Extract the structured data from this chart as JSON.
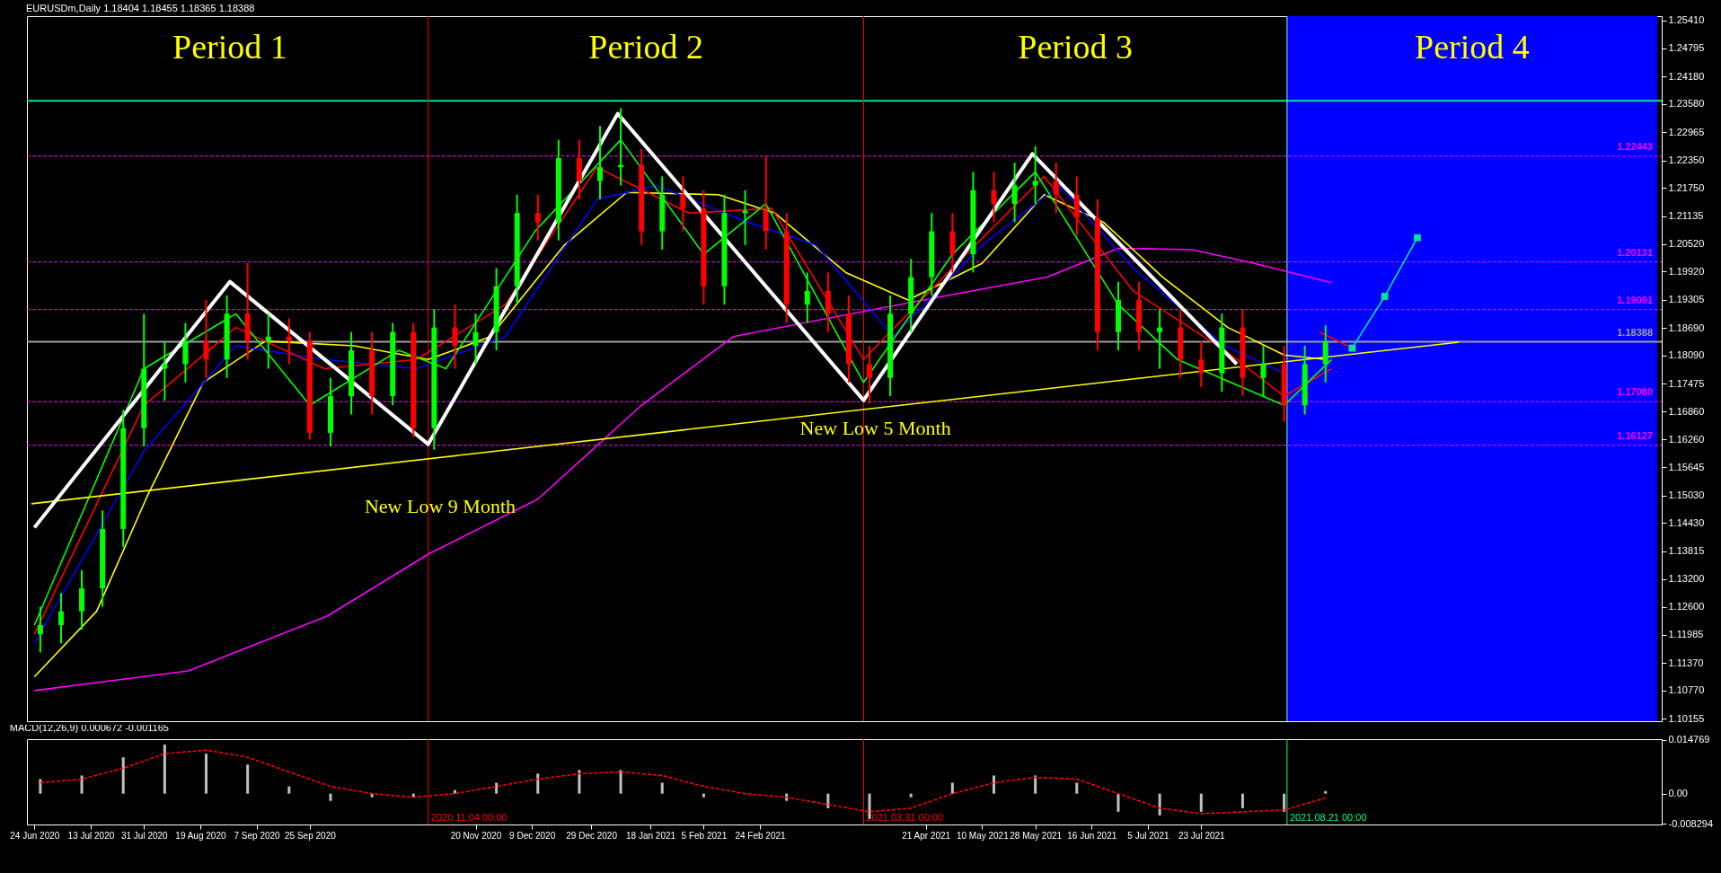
{
  "chart_data": [
    {
      "type": "candlestick",
      "title": "EURUSDm,Daily  1.18404 1.18455 1.18365 1.18388",
      "tick_labels": "y",
      "xlim": [
        "2020-06-23",
        "2021-12-24"
      ],
      "ylim": [
        1.101,
        1.255
      ],
      "yticks": [
        {
          "value": 1.2541,
          "label": "1.25410"
        },
        {
          "value": 1.24795,
          "label": "1.24795"
        },
        {
          "value": 1.2418,
          "label": "1.24180"
        },
        {
          "value": 1.2358,
          "label": "1.23580"
        },
        {
          "value": 1.22965,
          "label": "1.22965"
        },
        {
          "value": 1.2235,
          "label": "1.22350"
        },
        {
          "value": 1.2175,
          "label": "1.21750"
        },
        {
          "value": 1.21135,
          "label": "1.21135"
        },
        {
          "value": 1.2052,
          "label": "1.20520"
        },
        {
          "value": 1.1992,
          "label": "1.19920"
        },
        {
          "value": 1.19305,
          "label": "1.19305"
        },
        {
          "value": 1.1869,
          "label": "1.18690"
        },
        {
          "value": 1.1809,
          "label": "1.18090"
        },
        {
          "value": 1.17475,
          "label": "1.17475"
        },
        {
          "value": 1.1686,
          "label": "1.16860"
        },
        {
          "value": 1.1626,
          "label": "1.16260"
        },
        {
          "value": 1.15645,
          "label": "1.15645"
        },
        {
          "value": 1.1503,
          "label": "1.15030"
        },
        {
          "value": 1.1443,
          "label": "1.14430"
        },
        {
          "value": 1.13815,
          "label": "1.13815"
        },
        {
          "value": 1.132,
          "label": "1.13200"
        },
        {
          "value": 1.126,
          "label": "1.12600"
        },
        {
          "value": 1.11985,
          "label": "1.11985"
        },
        {
          "value": 1.1137,
          "label": "1.11370"
        },
        {
          "value": 1.1077,
          "label": "1.10770"
        },
        {
          "value": 1.10155,
          "label": "1.10155"
        }
      ],
      "x": [
        "2020-06-26",
        "2020-07-03",
        "2020-07-10",
        "2020-07-17",
        "2020-07-24",
        "2020-07-31",
        "2020-08-07",
        "2020-08-14",
        "2020-08-21",
        "2020-08-28",
        "2020-09-04",
        "2020-09-11",
        "2020-09-18",
        "2020-09-25",
        "2020-10-02",
        "2020-10-09",
        "2020-10-16",
        "2020-10-23",
        "2020-10-30",
        "2020-11-06",
        "2020-11-13",
        "2020-11-20",
        "2020-11-27",
        "2020-12-04",
        "2020-12-11",
        "2020-12-18",
        "2020-12-25",
        "2021-01-01",
        "2021-01-08",
        "2021-01-15",
        "2021-01-22",
        "2021-01-29",
        "2021-02-05",
        "2021-02-12",
        "2021-02-19",
        "2021-02-26",
        "2021-03-05",
        "2021-03-12",
        "2021-03-19",
        "2021-03-26",
        "2021-04-02",
        "2021-04-09",
        "2021-04-16",
        "2021-04-23",
        "2021-04-30",
        "2021-05-07",
        "2021-05-14",
        "2021-05-21",
        "2021-05-28",
        "2021-06-04",
        "2021-06-11",
        "2021-06-18",
        "2021-06-25",
        "2021-07-02",
        "2021-07-09",
        "2021-07-16",
        "2021-07-23",
        "2021-07-30",
        "2021-08-06",
        "2021-08-13",
        "2021-08-20",
        "2021-08-27",
        "2021-09-03"
      ],
      "ohlc": [
        [
          1.12,
          1.126,
          1.116,
          1.122
        ],
        [
          1.122,
          1.129,
          1.118,
          1.125
        ],
        [
          1.125,
          1.134,
          1.121,
          1.13
        ],
        [
          1.13,
          1.147,
          1.126,
          1.143
        ],
        [
          1.143,
          1.169,
          1.139,
          1.165
        ],
        [
          1.165,
          1.19,
          1.161,
          1.178
        ],
        [
          1.178,
          1.184,
          1.171,
          1.179
        ],
        [
          1.179,
          1.188,
          1.175,
          1.184
        ],
        [
          1.184,
          1.193,
          1.176,
          1.18
        ],
        [
          1.18,
          1.194,
          1.176,
          1.19
        ],
        [
          1.19,
          1.2011,
          1.18,
          1.184
        ],
        [
          1.184,
          1.19,
          1.178,
          1.185
        ],
        [
          1.185,
          1.189,
          1.179,
          1.184
        ],
        [
          1.184,
          1.186,
          1.1625,
          1.164
        ],
        [
          1.164,
          1.176,
          1.161,
          1.172
        ],
        [
          1.172,
          1.186,
          1.168,
          1.182
        ],
        [
          1.182,
          1.186,
          1.168,
          1.172
        ],
        [
          1.172,
          1.188,
          1.17,
          1.186
        ],
        [
          1.186,
          1.188,
          1.163,
          1.165
        ],
        [
          1.165,
          1.191,
          1.1603,
          1.187
        ],
        [
          1.187,
          1.192,
          1.178,
          1.183
        ],
        [
          1.183,
          1.19,
          1.179,
          1.186
        ],
        [
          1.186,
          1.2,
          1.182,
          1.196
        ],
        [
          1.196,
          1.216,
          1.192,
          1.212
        ],
        [
          1.212,
          1.216,
          1.206,
          1.21
        ],
        [
          1.21,
          1.228,
          1.206,
          1.224
        ],
        [
          1.224,
          1.228,
          1.215,
          1.219
        ],
        [
          1.219,
          1.231,
          1.215,
          1.222
        ],
        [
          1.222,
          1.2349,
          1.218,
          1.2225
        ],
        [
          1.2225,
          1.226,
          1.205,
          1.208
        ],
        [
          1.208,
          1.22,
          1.204,
          1.216
        ],
        [
          1.216,
          1.22,
          1.208,
          1.213
        ],
        [
          1.213,
          1.217,
          1.192,
          1.196
        ],
        [
          1.196,
          1.216,
          1.192,
          1.212
        ],
        [
          1.212,
          1.217,
          1.205,
          1.2125
        ],
        [
          1.2125,
          1.2245,
          1.204,
          1.208
        ],
        [
          1.208,
          1.212,
          1.188,
          1.192
        ],
        [
          1.192,
          1.199,
          1.188,
          1.195
        ],
        [
          1.195,
          1.199,
          1.186,
          1.19
        ],
        [
          1.19,
          1.194,
          1.175,
          1.179
        ],
        [
          1.179,
          1.183,
          1.1704,
          1.176
        ],
        [
          1.176,
          1.194,
          1.172,
          1.19
        ],
        [
          1.19,
          1.202,
          1.186,
          1.198
        ],
        [
          1.198,
          1.212,
          1.194,
          1.208
        ],
        [
          1.208,
          1.212,
          1.199,
          1.203
        ],
        [
          1.203,
          1.221,
          1.199,
          1.217
        ],
        [
          1.217,
          1.221,
          1.21,
          1.214
        ],
        [
          1.214,
          1.223,
          1.21,
          1.218
        ],
        [
          1.218,
          1.2266,
          1.214,
          1.219
        ],
        [
          1.219,
          1.223,
          1.212,
          1.216
        ],
        [
          1.216,
          1.22,
          1.207,
          1.211
        ],
        [
          1.211,
          1.215,
          1.182,
          1.186
        ],
        [
          1.186,
          1.197,
          1.182,
          1.193
        ],
        [
          1.193,
          1.197,
          1.182,
          1.186
        ],
        [
          1.186,
          1.191,
          1.178,
          1.187
        ],
        [
          1.187,
          1.191,
          1.176,
          1.18
        ],
        [
          1.18,
          1.184,
          1.174,
          1.177
        ],
        [
          1.177,
          1.19,
          1.173,
          1.187
        ],
        [
          1.187,
          1.191,
          1.172,
          1.176
        ],
        [
          1.176,
          1.183,
          1.172,
          1.179
        ],
        [
          1.179,
          1.183,
          1.1664,
          1.17
        ],
        [
          1.17,
          1.183,
          1.168,
          1.179
        ],
        [
          1.179,
          1.1875,
          1.175,
          1.18388
        ]
      ],
      "colors": [
        "#00ff00",
        "#00ff00",
        "#00ff00",
        "#00ff00",
        "#00ff00",
        "#00ff00",
        "#00ff00",
        "#00ff00",
        "#ff0000",
        "#00ff00",
        "#ff0000",
        "#00ff00",
        "#ff0000",
        "#ff0000",
        "#00ff00",
        "#00ff00",
        "#ff0000",
        "#00ff00",
        "#ff0000",
        "#00ff00",
        "#ff0000",
        "#00ff00",
        "#00ff00",
        "#00ff00",
        "#ff0000",
        "#00ff00",
        "#ff0000",
        "#00ff00",
        "#00ff00",
        "#ff0000",
        "#00ff00",
        "#ff0000",
        "#ff0000",
        "#00ff00",
        "#00ff00",
        "#ff0000",
        "#ff0000",
        "#00ff00",
        "#ff0000",
        "#ff0000",
        "#ff0000",
        "#00ff00",
        "#00ff00",
        "#00ff00",
        "#ff0000",
        "#00ff00",
        "#ff0000",
        "#00ff00",
        "#00ff00",
        "#ff0000",
        "#ff0000",
        "#ff0000",
        "#00ff00",
        "#ff0000",
        "#00ff00",
        "#ff0000",
        "#ff0000",
        "#00ff00",
        "#ff0000",
        "#00ff00",
        "#ff0000",
        "#00ff00",
        "#00ff00"
      ],
      "series": [
        {
          "type": "line",
          "color": "#ff00ff",
          "x": [
            "2020-06-24",
            "2020-08-15",
            "2020-10-01",
            "2020-11-04",
            "2020-12-11",
            "2021-01-15",
            "2021-02-15",
            "2021-03-31",
            "2021-04-30",
            "2021-06-01",
            "2021-06-25",
            "2021-07-20",
            "2021-08-10",
            "2021-09-05"
          ],
          "values": [
            1.1077,
            1.112,
            1.124,
            1.1375,
            1.1495,
            1.17,
            1.185,
            1.1905,
            1.1942,
            1.198,
            1.2043,
            1.204,
            1.201,
            1.1968
          ]
        },
        {
          "type": "line",
          "color": "#ffff00",
          "x": [
            "2020-06-24",
            "2020-07-15",
            "2020-08-01",
            "2020-08-20",
            "2020-09-10",
            "2020-10-10",
            "2020-11-04",
            "2020-11-25",
            "2020-12-20",
            "2021-01-10",
            "2021-02-10",
            "2021-03-01",
            "2021-03-25",
            "2021-04-15",
            "2021-05-10",
            "2021-05-31",
            "2021-06-20",
            "2021-07-10",
            "2021-08-01",
            "2021-08-20",
            "2021-09-03"
          ],
          "values": [
            1.1107,
            1.125,
            1.15,
            1.175,
            1.184,
            1.183,
            1.18,
            1.185,
            1.205,
            1.2165,
            1.216,
            1.212,
            1.199,
            1.193,
            1.201,
            1.216,
            1.21,
            1.198,
            1.187,
            1.181,
            1.18
          ]
        },
        {
          "type": "line",
          "color": "#0000ff",
          "x": [
            "2020-06-24",
            "2020-07-31",
            "2020-08-31",
            "2020-09-30",
            "2020-10-31",
            "2020-11-30",
            "2020-12-31",
            "2021-01-20",
            "2021-02-20",
            "2021-03-15",
            "2021-04-10",
            "2021-05-10",
            "2021-06-05",
            "2021-06-30",
            "2021-07-31",
            "2021-08-20"
          ],
          "values": [
            1.118,
            1.16,
            1.183,
            1.18,
            1.178,
            1.185,
            1.215,
            1.218,
            1.21,
            1.205,
            1.185,
            1.205,
            1.218,
            1.2,
            1.183,
            1.177
          ]
        },
        {
          "type": "line",
          "color": "#ff0000",
          "x": [
            "2020-06-24",
            "2020-07-31",
            "2020-08-31",
            "2020-09-30",
            "2020-10-31",
            "2020-11-30",
            "2020-12-31",
            "2021-01-31",
            "2021-02-28",
            "2021-03-31",
            "2021-04-30",
            "2021-05-31",
            "2021-06-30",
            "2021-07-31",
            "2021-08-20",
            "2021-09-05"
          ],
          "values": [
            1.12,
            1.17,
            1.187,
            1.178,
            1.18,
            1.192,
            1.222,
            1.212,
            1.213,
            1.18,
            1.2,
            1.22,
            1.195,
            1.182,
            1.172,
            1.178
          ]
        },
        {
          "type": "line",
          "color": "#00ff00",
          "x": [
            "2020-06-24",
            "2020-07-31",
            "2020-08-31",
            "2020-09-25",
            "2020-10-25",
            "2020-11-10",
            "2020-12-10",
            "2021-01-08",
            "2021-02-05",
            "2021-02-26",
            "2021-03-31",
            "2021-04-30",
            "2021-05-28",
            "2021-06-25",
            "2021-07-15",
            "2021-08-20",
            "2021-09-05"
          ],
          "values": [
            1.122,
            1.178,
            1.19,
            1.17,
            1.182,
            1.178,
            1.208,
            1.228,
            1.203,
            1.214,
            1.175,
            1.203,
            1.221,
            1.192,
            1.18,
            1.17,
            1.18
          ]
        },
        {
          "type": "line",
          "color": "#ffff00",
          "x": [
            "2020-06-23",
            "2021-10-18"
          ],
          "values": [
            1.1485,
            1.1838
          ]
        },
        {
          "type": "line",
          "color": "#ffffff",
          "x": [
            "2020-06-24",
            "2020-08-29",
            "2020-11-04",
            "2021-01-07",
            "2021-03-31",
            "2021-05-27",
            "2021-08-04"
          ],
          "values": [
            1.1433,
            1.197,
            1.1615,
            1.2337,
            1.1711,
            1.2249,
            1.179
          ]
        },
        {
          "type": "line",
          "color": "#ff0000",
          "x": [
            "2021-09-01",
            "2021-09-12"
          ],
          "values": [
            1.186,
            1.1825
          ]
        },
        {
          "type": "line",
          "color": "#00e68c",
          "marker": "square",
          "x": [
            "2021-09-12",
            "2021-09-23",
            "2021-10-04"
          ],
          "values": [
            1.1825,
            1.1938,
            1.2066
          ]
        }
      ],
      "bands": [
        {
          "axis": "x",
          "from": "2021-08-21",
          "to": "2021-12-24",
          "color": "#0000ff"
        }
      ],
      "ref_lines": [
        {
          "axis": "y",
          "value": 1.2365,
          "color": "#00e68c",
          "line_style": "solid"
        },
        {
          "axis": "y",
          "value": 1.22443,
          "label": "1.22443",
          "color": "#ff00ff",
          "line_style": "dashed"
        },
        {
          "axis": "y",
          "value": 1.20131,
          "label": "1.20131",
          "color": "#ff00ff",
          "line_style": "dashed"
        },
        {
          "axis": "y",
          "value": 1.19091,
          "label": "1.19091",
          "color": "#ff00ff",
          "line_style": "dashed"
        },
        {
          "axis": "y",
          "value": 1.18388,
          "label": "1.18388",
          "color": "#a0a0a0",
          "line_style": "solid"
        },
        {
          "axis": "y",
          "value": 1.1708,
          "label": "1.17080",
          "color": "#ff00ff",
          "line_style": "dashed"
        },
        {
          "axis": "y",
          "value": 1.16127,
          "label": "1.16127",
          "color": "#ff00ff",
          "line_style": "dashed"
        },
        {
          "axis": "x",
          "value": "2020-11-04",
          "color": "#ff0000",
          "line_style": "solid"
        },
        {
          "axis": "x",
          "value": "2021-03-31",
          "color": "#ff0000",
          "line_style": "solid"
        },
        {
          "axis": "x",
          "value": "2021-08-21",
          "color": "#7fffd4",
          "line_style": "solid"
        }
      ],
      "annotations": [
        "Period 1",
        "Period 2",
        "Period 3",
        "Period 4",
        "New Low 9 Month",
        "New Low 5 Month"
      ]
    },
    {
      "type": "bar",
      "title": "MACD(12,26,9) 0.000672 -0.001165",
      "xlim": [
        "2020-06-23",
        "2021-12-24"
      ],
      "ylim": [
        -0.0085,
        0.015
      ],
      "yticks": [
        {
          "value": 0.014769,
          "label": "0.014769"
        },
        {
          "value": 0,
          "label": "0.00"
        },
        {
          "value": -0.008294,
          "label": "-0.008294"
        }
      ],
      "xticks": [
        {
          "value": "2020-06-24",
          "label": "24 Jun 2020"
        },
        {
          "value": "2020-07-13",
          "label": "13 Jul 2020"
        },
        {
          "value": "2020-07-31",
          "label": "31 Jul 2020"
        },
        {
          "value": "2020-08-19",
          "label": "19 Aug 2020"
        },
        {
          "value": "2020-09-07",
          "label": "7 Sep 2020"
        },
        {
          "value": "2020-09-25",
          "label": "25 Sep 2020"
        },
        {
          "value": "2020-11-20",
          "label": "20 Nov 2020"
        },
        {
          "value": "2020-12-09",
          "label": "9 Dec 2020"
        },
        {
          "value": "2020-12-29",
          "label": "29 Dec 2020"
        },
        {
          "value": "2021-01-18",
          "label": "18 Jan 2021"
        },
        {
          "value": "2021-02-05",
          "label": "5 Feb 2021"
        },
        {
          "value": "2021-02-24",
          "label": "24 Feb 2021"
        },
        {
          "value": "2021-04-21",
          "label": "21 Apr 2021"
        },
        {
          "value": "2021-05-10",
          "label": "10 May 2021"
        },
        {
          "value": "2021-05-28",
          "label": "28 May 2021"
        },
        {
          "value": "2021-06-16",
          "label": "16 Jun 2021"
        },
        {
          "value": "2021-07-05",
          "label": "5 Jul 2021"
        },
        {
          "value": "2021-07-23",
          "label": "23 Jul 2021"
        }
      ],
      "x": [
        "2020-06-26",
        "2020-07-10",
        "2020-07-24",
        "2020-08-07",
        "2020-08-21",
        "2020-09-04",
        "2020-09-18",
        "2020-10-02",
        "2020-10-16",
        "2020-10-30",
        "2020-11-13",
        "2020-11-27",
        "2020-12-11",
        "2020-12-25",
        "2021-01-08",
        "2021-01-22",
        "2021-02-05",
        "2021-02-19",
        "2021-03-05",
        "2021-03-19",
        "2021-04-02",
        "2021-04-16",
        "2021-04-30",
        "2021-05-14",
        "2021-05-28",
        "2021-06-11",
        "2021-06-25",
        "2021-07-09",
        "2021-07-23",
        "2021-08-06",
        "2021-08-20",
        "2021-09-03"
      ],
      "series": [
        {
          "type": "bar",
          "color": "#c0c0c0",
          "values": [
            0.004,
            0.005,
            0.01,
            0.0135,
            0.011,
            0.008,
            0.002,
            -0.002,
            -0.001,
            -0.001,
            0.001,
            0.003,
            0.0055,
            0.0065,
            0.0065,
            0.003,
            -0.001,
            0,
            -0.002,
            -0.004,
            -0.007,
            -0.001,
            0.003,
            0.005,
            0.005,
            0.003,
            -0.005,
            -0.006,
            -0.005,
            -0.004,
            -0.005,
            0.0007
          ]
        },
        {
          "type": "line",
          "color": "#ff0000",
          "line_style": "dashed",
          "values": [
            0.003,
            0.004,
            0.007,
            0.011,
            0.012,
            0.01,
            0.006,
            0.002,
            0,
            -0.001,
            0,
            0.002,
            0.004,
            0.0055,
            0.006,
            0.005,
            0.002,
            0,
            -0.001,
            -0.003,
            -0.005,
            -0.004,
            0,
            0.003,
            0.0045,
            0.004,
            0,
            -0.004,
            -0.0055,
            -0.005,
            -0.0045,
            -0.0012
          ]
        }
      ],
      "ref_lines": [
        {
          "axis": "x",
          "value": "2020-11-04",
          "label": "2020.11.04 00:00",
          "color": "#ff0000",
          "line_style": "solid"
        },
        {
          "axis": "x",
          "value": "2021-03-31",
          "label": "2021.03.31 00:00",
          "color": "#ff0000",
          "line_style": "solid"
        },
        {
          "axis": "x",
          "value": "2021-08-21",
          "label": "2021.08.21 00:00",
          "color": "#00ff80",
          "line_style": "solid"
        }
      ]
    }
  ]
}
